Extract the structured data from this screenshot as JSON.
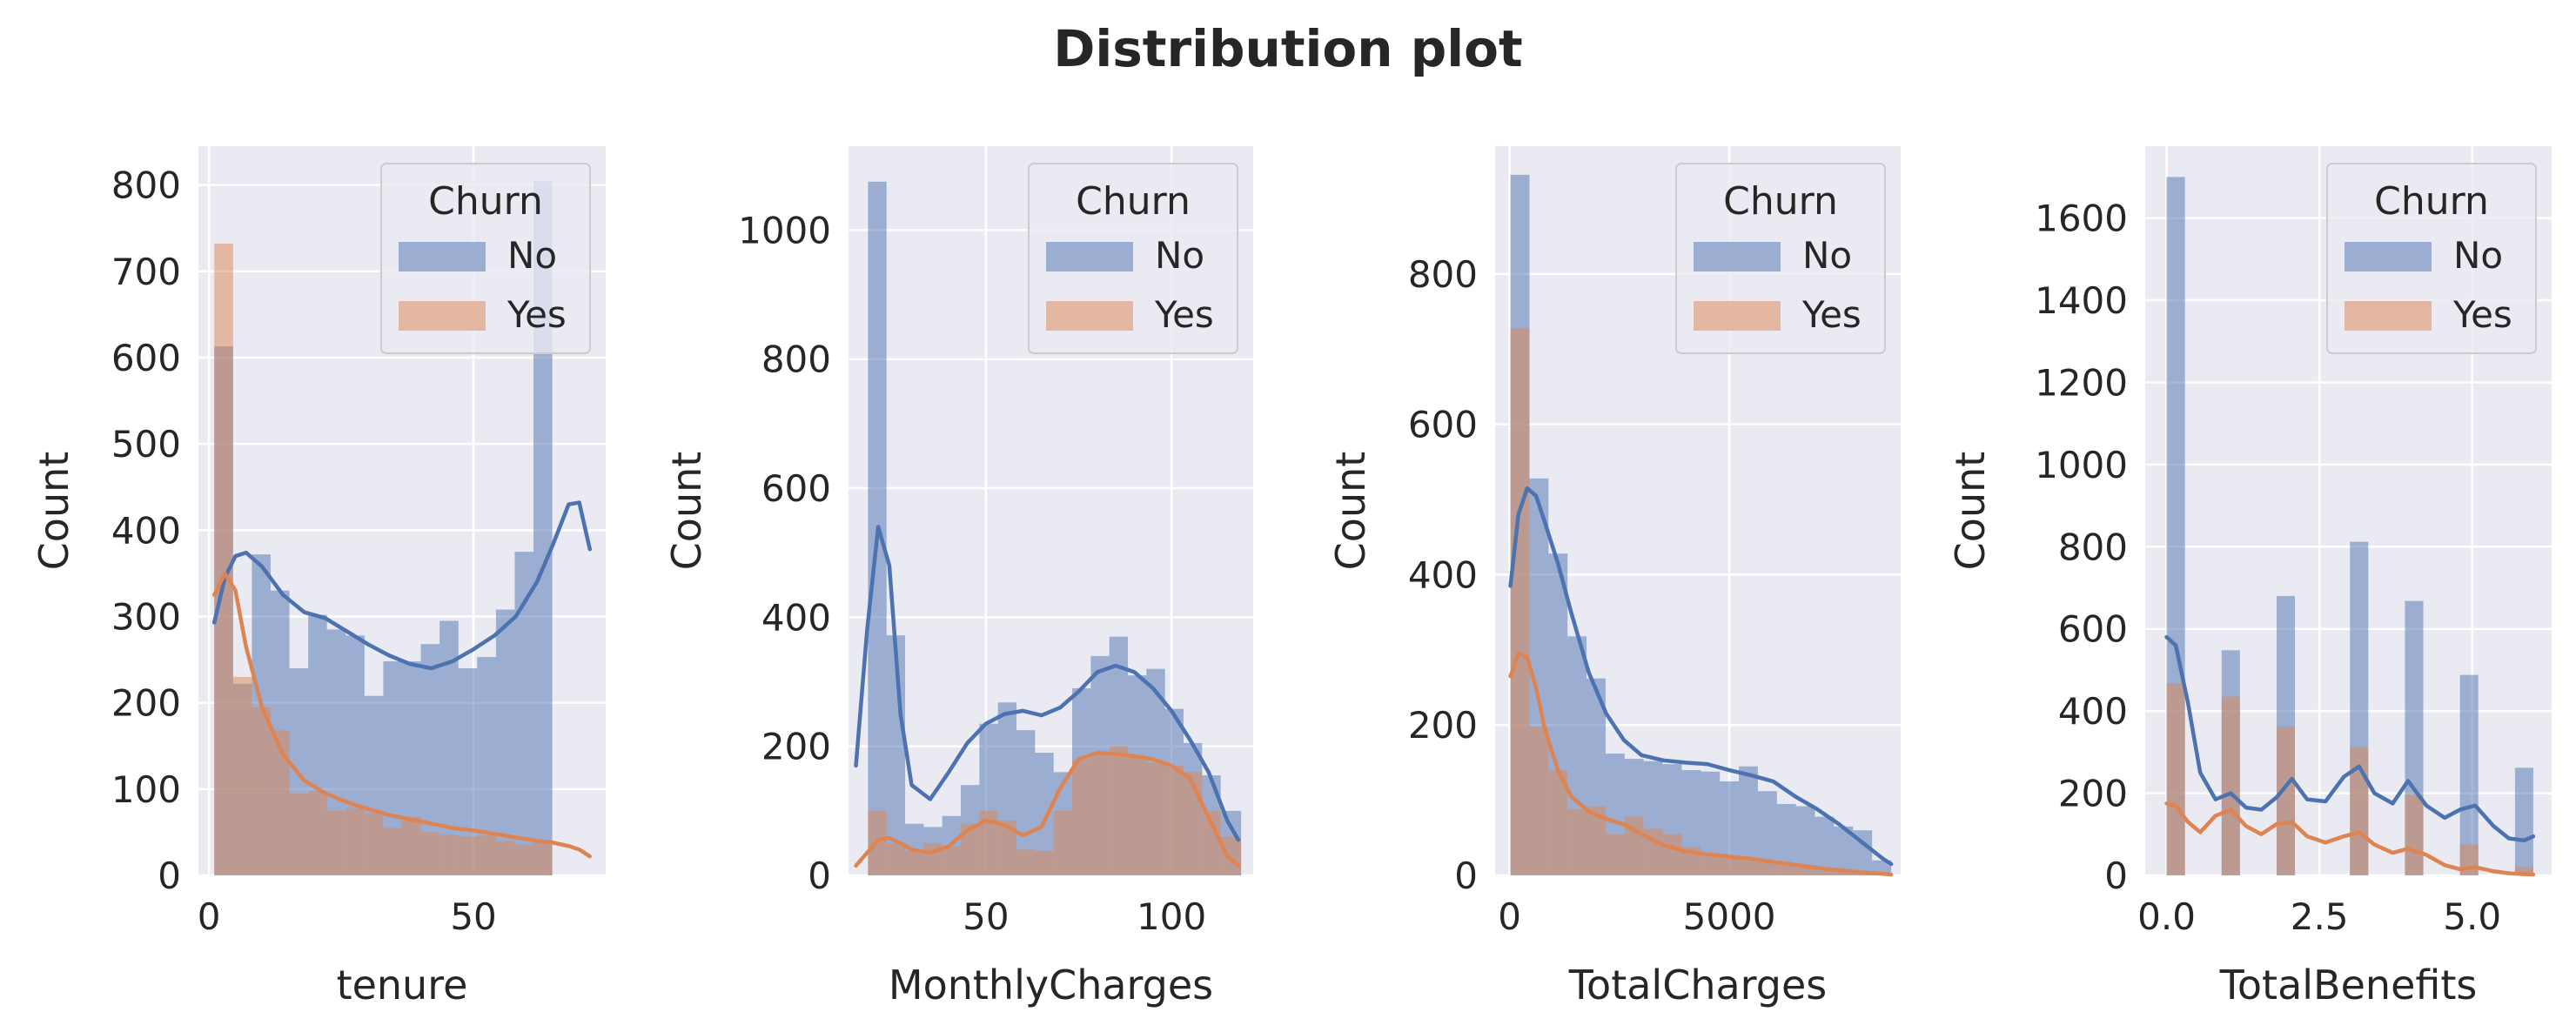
{
  "figure": {
    "suptitle": "Distribution plot"
  },
  "colors": {
    "No": "#4c72b0",
    "Yes": "#dd8452",
    "panel_bg": "#eaeaf2",
    "grid": "#ffffff",
    "text": "#262626"
  },
  "chart_data": [
    {
      "type": "histogram-kde",
      "title": "",
      "xlabel": "tenure",
      "ylabel": "Count",
      "xlim": [
        -2,
        75
      ],
      "ylim": [
        0,
        845
      ],
      "xticks": [
        0,
        50
      ],
      "yticks": [
        0,
        100,
        200,
        300,
        400,
        500,
        600,
        700,
        800
      ],
      "xtick_labels": [
        "0",
        "50"
      ],
      "ytick_labels": [
        "0",
        "100",
        "200",
        "300",
        "400",
        "500",
        "600",
        "700",
        "800"
      ],
      "bin_edges": [
        1,
        4.55,
        8.1,
        11.65,
        15.2,
        18.75,
        22.3,
        25.85,
        29.4,
        32.95,
        36.5,
        40.05,
        43.6,
        47.15,
        50.7,
        54.25,
        57.8,
        61.35,
        64.9,
        68.45,
        72
      ],
      "legend": {
        "title": "Churn",
        "entries": [
          "No",
          "Yes"
        ],
        "loc": "upper right"
      },
      "series": [
        {
          "name": "No",
          "counts": [
            613,
            222,
            372,
            330,
            240,
            302,
            285,
            278,
            208,
            248,
            248,
            268,
            295,
            240,
            253,
            308,
            375,
            805,
            0,
            0
          ],
          "kde_x": [
            1,
            3,
            5,
            7,
            10,
            14,
            18,
            22,
            26,
            30,
            34,
            38,
            42,
            46,
            50,
            54,
            58,
            62,
            65,
            68,
            70,
            72
          ],
          "kde_y": [
            293,
            345,
            370,
            374,
            358,
            325,
            305,
            298,
            283,
            268,
            255,
            245,
            240,
            248,
            262,
            278,
            300,
            340,
            383,
            430,
            432,
            378
          ]
        },
        {
          "name": "Yes",
          "counts": [
            732,
            230,
            195,
            168,
            95,
            98,
            75,
            78,
            72,
            55,
            68,
            50,
            47,
            45,
            46,
            40,
            35,
            38,
            0,
            0
          ],
          "kde_x": [
            1,
            3,
            5,
            7,
            10,
            14,
            18,
            22,
            26,
            30,
            34,
            38,
            42,
            46,
            50,
            54,
            58,
            62,
            65,
            68,
            70,
            72
          ],
          "kde_y": [
            325,
            350,
            330,
            265,
            195,
            140,
            110,
            95,
            85,
            77,
            70,
            65,
            60,
            55,
            52,
            48,
            44,
            40,
            38,
            34,
            30,
            22
          ]
        }
      ]
    },
    {
      "type": "histogram-kde",
      "title": "",
      "xlabel": "MonthlyCharges",
      "ylabel": "Count",
      "xlim": [
        13,
        122
      ],
      "ylim": [
        0,
        1130
      ],
      "xticks": [
        50,
        100
      ],
      "yticks": [
        0,
        200,
        400,
        600,
        800,
        1000
      ],
      "xtick_labels": [
        "50",
        "100"
      ],
      "ytick_labels": [
        "0",
        "200",
        "400",
        "600",
        "800",
        "1000"
      ],
      "bin_edges": [
        18.25,
        23.25,
        28.25,
        33.25,
        38.25,
        43.25,
        48.25,
        53.25,
        58.25,
        63.25,
        68.25,
        73.25,
        78.25,
        83.25,
        88.25,
        93.25,
        98.25,
        103.25,
        108.25,
        113.25,
        118.75
      ],
      "legend": {
        "title": "Churn",
        "entries": [
          "No",
          "Yes"
        ],
        "loc": "upper right"
      },
      "series": [
        {
          "name": "No",
          "counts": [
            1075,
            372,
            80,
            75,
            92,
            140,
            235,
            268,
            225,
            190,
            160,
            290,
            340,
            370,
            310,
            320,
            258,
            205,
            155,
            100
          ],
          "kde_x": [
            15,
            18,
            21,
            24,
            27,
            30,
            35,
            40,
            45,
            50,
            55,
            60,
            65,
            70,
            75,
            80,
            85,
            90,
            95,
            100,
            105,
            110,
            115,
            118
          ],
          "kde_y": [
            170,
            380,
            540,
            480,
            250,
            140,
            118,
            160,
            205,
            235,
            250,
            255,
            248,
            260,
            285,
            315,
            325,
            315,
            290,
            255,
            210,
            160,
            85,
            55
          ]
        },
        {
          "name": "Yes",
          "counts": [
            100,
            50,
            38,
            50,
            45,
            80,
            100,
            85,
            40,
            38,
            100,
            180,
            190,
            200,
            185,
            175,
            170,
            160,
            100,
            60
          ],
          "kde_x": [
            15,
            18,
            21,
            24,
            27,
            30,
            35,
            40,
            45,
            50,
            55,
            60,
            65,
            70,
            75,
            80,
            85,
            90,
            95,
            100,
            105,
            110,
            115,
            118
          ],
          "kde_y": [
            15,
            35,
            55,
            58,
            50,
            40,
            35,
            45,
            70,
            85,
            78,
            62,
            75,
            135,
            180,
            190,
            188,
            185,
            180,
            170,
            150,
            90,
            30,
            15
          ]
        }
      ]
    },
    {
      "type": "histogram-kde",
      "title": "",
      "xlabel": "TotalCharges",
      "ylabel": "Count",
      "xlim": [
        -330,
        8900
      ],
      "ylim": [
        0,
        970
      ],
      "xticks": [
        0,
        5000
      ],
      "yticks": [
        0,
        200,
        400,
        600,
        800
      ],
      "xtick_labels": [
        "0",
        "5000"
      ],
      "ytick_labels": [
        "0",
        "200",
        "400",
        "600",
        "800"
      ],
      "bin_edges": [
        18.8,
        452,
        885,
        1318,
        1751,
        2185,
        2618,
        3051,
        3484,
        3918,
        4351,
        4784,
        5217,
        5650,
        6084,
        6517,
        6950,
        7383,
        7817,
        8250,
        8684.8
      ],
      "legend": {
        "title": "Churn",
        "entries": [
          "No",
          "Yes"
        ],
        "loc": "upper right"
      },
      "series": [
        {
          "name": "No",
          "counts": [
            932,
            528,
            428,
            318,
            262,
            162,
            155,
            152,
            148,
            140,
            138,
            125,
            145,
            112,
            95,
            92,
            78,
            65,
            60,
            20
          ],
          "kde_x": [
            18.8,
            200,
            400,
            600,
            800,
            1100,
            1400,
            1800,
            2200,
            2600,
            3000,
            3500,
            4000,
            4500,
            5000,
            5500,
            6000,
            6500,
            7000,
            7500,
            8000,
            8500,
            8684.8
          ],
          "kde_y": [
            385,
            480,
            515,
            505,
            470,
            415,
            350,
            270,
            215,
            180,
            160,
            153,
            150,
            148,
            140,
            133,
            125,
            105,
            88,
            68,
            45,
            22,
            15
          ]
        },
        {
          "name": "Yes",
          "counts": [
            728,
            198,
            140,
            88,
            92,
            55,
            78,
            62,
            55,
            38,
            30,
            26,
            22,
            18,
            15,
            10,
            6,
            4,
            2,
            1
          ],
          "kde_x": [
            18.8,
            200,
            400,
            600,
            800,
            1100,
            1400,
            1800,
            2200,
            2600,
            3000,
            3500,
            4000,
            4500,
            5000,
            5500,
            6000,
            6500,
            7000,
            7500,
            8000,
            8500,
            8684.8
          ],
          "kde_y": [
            265,
            295,
            290,
            250,
            195,
            140,
            105,
            85,
            75,
            68,
            55,
            40,
            32,
            28,
            25,
            22,
            18,
            14,
            10,
            7,
            4,
            2,
            1
          ]
        }
      ]
    },
    {
      "type": "histogram-kde",
      "title": "",
      "xlabel": "TotalBenefits",
      "ylabel": "Count",
      "xlim": [
        -0.35,
        6.3
      ],
      "ylim": [
        0,
        1775
      ],
      "xticks": [
        0,
        2.5,
        5
      ],
      "yticks": [
        0,
        200,
        400,
        600,
        800,
        1000,
        1200,
        1400,
        1600
      ],
      "xtick_labels": [
        "0.0",
        "2.5",
        "5.0"
      ],
      "ytick_labels": [
        "0",
        "200",
        "400",
        "600",
        "800",
        "1000",
        "1200",
        "1400",
        "1600"
      ],
      "bin_edges": [
        0,
        0.3,
        0.6,
        0.9,
        1.2,
        1.5,
        1.8,
        2.1,
        2.4,
        2.7,
        3.0,
        3.3,
        3.6,
        3.9,
        4.2,
        4.5,
        4.8,
        5.1,
        5.4,
        5.7,
        6.0
      ],
      "legend": {
        "title": "Churn",
        "entries": [
          "No",
          "Yes"
        ],
        "loc": "upper right"
      },
      "series": [
        {
          "name": "No",
          "counts": [
            1700,
            0,
            0,
            548,
            0,
            0,
            680,
            0,
            0,
            0,
            812,
            0,
            0,
            668,
            0,
            0,
            488,
            0,
            0,
            262
          ],
          "kde_x": [
            0,
            0.15,
            0.35,
            0.55,
            0.8,
            1.05,
            1.3,
            1.55,
            1.8,
            2.05,
            2.3,
            2.6,
            2.9,
            3.15,
            3.4,
            3.7,
            3.95,
            4.25,
            4.55,
            4.8,
            5.05,
            5.35,
            5.6,
            5.85,
            6.0
          ],
          "kde_y": [
            580,
            560,
            420,
            250,
            185,
            200,
            165,
            160,
            190,
            235,
            185,
            180,
            240,
            265,
            200,
            175,
            230,
            170,
            140,
            160,
            170,
            120,
            90,
            85,
            95
          ]
        },
        {
          "name": "Yes",
          "counts": [
            468,
            0,
            0,
            435,
            0,
            0,
            362,
            0,
            0,
            0,
            312,
            0,
            0,
            195,
            0,
            0,
            75,
            0,
            0,
            20
          ],
          "kde_x": [
            0,
            0.15,
            0.35,
            0.55,
            0.8,
            1.05,
            1.3,
            1.55,
            1.8,
            2.05,
            2.3,
            2.6,
            2.9,
            3.15,
            3.4,
            3.7,
            3.95,
            4.25,
            4.55,
            4.8,
            5.05,
            5.35,
            5.6,
            5.85,
            6.0
          ],
          "kde_y": [
            175,
            168,
            130,
            105,
            145,
            160,
            120,
            100,
            125,
            130,
            95,
            80,
            95,
            105,
            75,
            55,
            65,
            50,
            25,
            15,
            20,
            10,
            5,
            3,
            2
          ]
        }
      ]
    }
  ]
}
